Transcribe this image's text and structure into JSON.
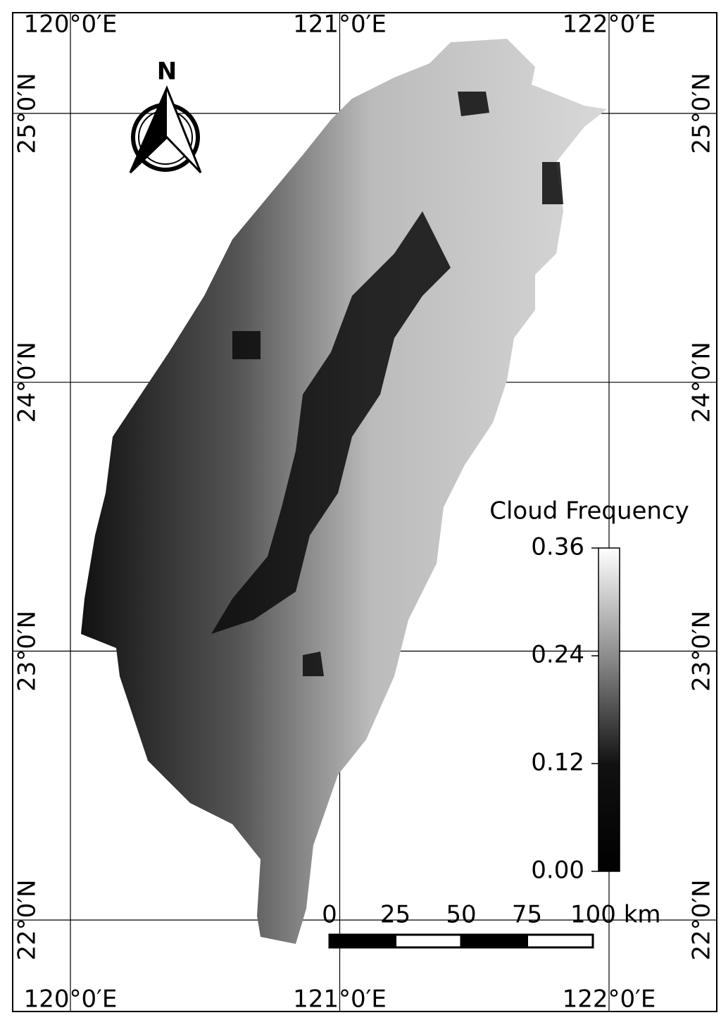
{
  "map": {
    "north_label": "N",
    "longitude_ticks": [
      {
        "value": 120,
        "label": "120°0′E"
      },
      {
        "value": 121,
        "label": "121°0′E"
      },
      {
        "value": 122,
        "label": "122°0′E"
      }
    ],
    "latitude_ticks": [
      {
        "value": 25,
        "label": "25°0′N"
      },
      {
        "value": 24,
        "label": "24°0′N"
      },
      {
        "value": 23,
        "label": "23°0′N"
      },
      {
        "value": 22,
        "label": "22°0′N"
      }
    ],
    "legend": {
      "title": "Cloud Frequency",
      "ticks": [
        {
          "value": 0,
          "label": "0.00"
        },
        {
          "value": 0.12,
          "label": "0.12"
        },
        {
          "value": 0.24,
          "label": "0.24"
        },
        {
          "value": 0.36,
          "label": "0.36"
        }
      ]
    },
    "scale_bar": {
      "ticks": [
        0,
        25,
        50,
        75,
        {
          "value": 100,
          "label": "100 km"
        }
      ]
    }
  }
}
